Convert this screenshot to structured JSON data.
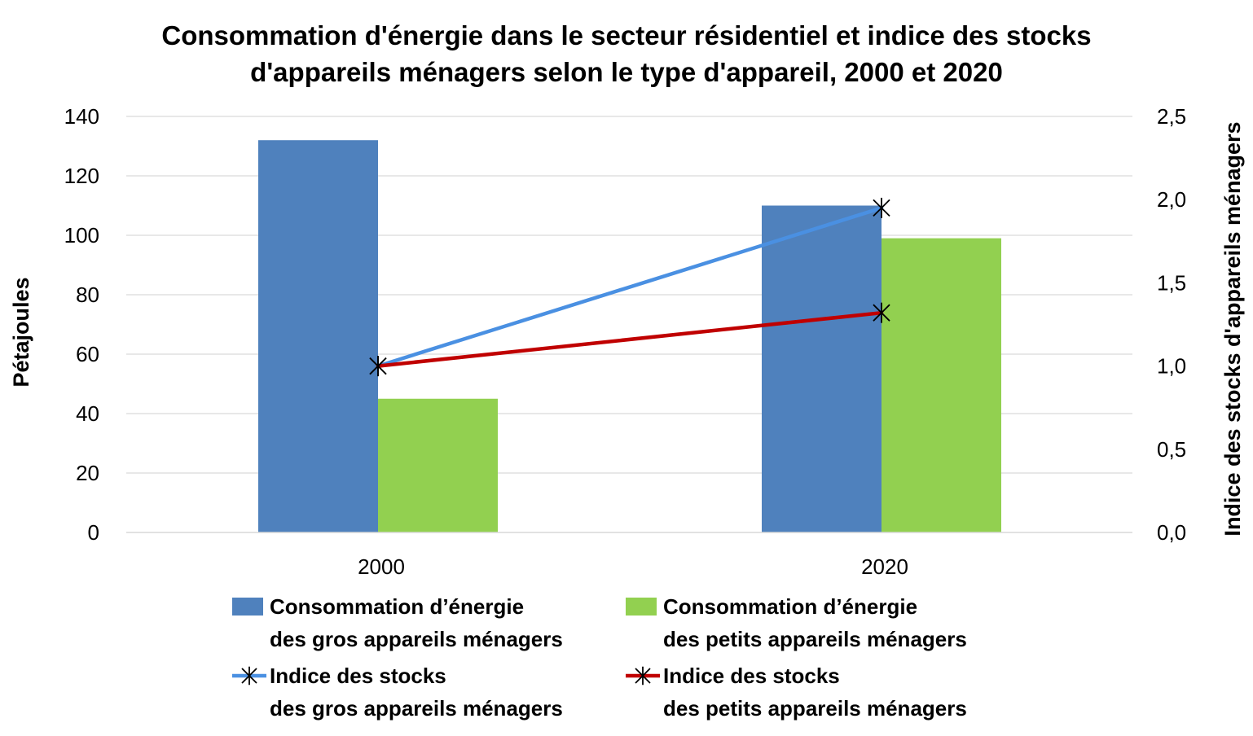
{
  "chart_data": {
    "type": "bar",
    "title": [
      "Consommation d'énergie dans le secteur résidentiel et indice des stocks",
      "d'appareils ménagers selon le type d'appareil, 2000 et 2020"
    ],
    "categories": [
      "2000",
      "2020"
    ],
    "ylabel": "Pétajoules",
    "y2label": "Indice des stocks d'appareils ménagers",
    "ylim": [
      0,
      140
    ],
    "yticks": [
      0,
      20,
      40,
      60,
      80,
      100,
      120,
      140
    ],
    "ytick_labels": [
      "0",
      "20",
      "40",
      "60",
      "80",
      "100",
      "120",
      "140"
    ],
    "y2lim": [
      0,
      2.5
    ],
    "y2ticks": [
      0,
      0.5,
      1,
      1.5,
      2,
      2.5
    ],
    "y2tick_labels": [
      "0,0",
      "0,5",
      "1,0",
      "1,5",
      "2,0",
      "2,5"
    ],
    "grid": true,
    "legend_position": "bottom",
    "series": [
      {
        "name": "Consommation d’énergie des gros appareils ménagers",
        "legend_lines": [
          "Consommation d’énergie",
          "des gros appareils ménagers"
        ],
        "type": "bar",
        "axis": "left",
        "color": "#4F81BD",
        "values": [
          132,
          110
        ]
      },
      {
        "name": "Consommation d’énergie des petits appareils ménagers",
        "legend_lines": [
          "Consommation d’énergie",
          "des petits appareils ménagers"
        ],
        "type": "bar",
        "axis": "left",
        "color": "#92D050",
        "values": [
          45,
          99
        ]
      },
      {
        "name": "Indice des stocks des gros appareils ménagers",
        "legend_lines": [
          "Indice des stocks",
          "des gros appareils ménagers"
        ],
        "type": "line",
        "axis": "right",
        "color": "#4A90E2",
        "marker": "asterisk",
        "values": [
          1.0,
          1.95
        ]
      },
      {
        "name": "Indice des stocks des petits appareils ménagers",
        "legend_lines": [
          "Indice des stocks",
          "des petits appareils ménagers"
        ],
        "type": "line",
        "axis": "right",
        "color": "#C00000",
        "marker": "asterisk",
        "values": [
          1.0,
          1.32
        ]
      }
    ]
  }
}
